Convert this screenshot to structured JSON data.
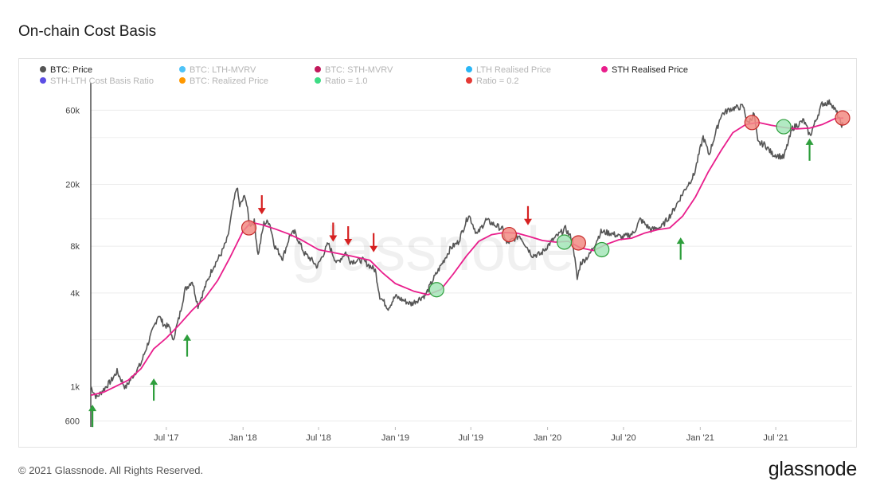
{
  "page": {
    "title": "On-chain Cost Basis",
    "footer": "© 2021 Glassnode. All Rights Reserved.",
    "logo": "glassnode",
    "watermark": "glassnode"
  },
  "chart_data": {
    "type": "line",
    "title": "On-chain Cost Basis",
    "y_scale": "log",
    "ylim": [
      550,
      80000
    ],
    "xlim": [
      "2017-01-01",
      "2021-12-31"
    ],
    "yticks": [
      {
        "label": "600",
        "value": 600
      },
      {
        "label": "1k",
        "value": 1000
      },
      {
        "label": "4k",
        "value": 4000
      },
      {
        "label": "8k",
        "value": 8000
      },
      {
        "label": "20k",
        "value": 20000
      },
      {
        "label": "60k",
        "value": 60000
      }
    ],
    "xticks": [
      {
        "label": "Jul '17",
        "date": "2017-07-01"
      },
      {
        "label": "Jan '18",
        "date": "2018-01-01"
      },
      {
        "label": "Jul '18",
        "date": "2018-07-01"
      },
      {
        "label": "Jan '19",
        "date": "2019-01-01"
      },
      {
        "label": "Jul '19",
        "date": "2019-07-01"
      },
      {
        "label": "Jan '20",
        "date": "2020-01-01"
      },
      {
        "label": "Jul '20",
        "date": "2020-07-01"
      },
      {
        "label": "Jan '21",
        "date": "2021-01-01"
      },
      {
        "label": "Jul '21",
        "date": "2021-07-01"
      }
    ],
    "grid": "horizontal",
    "legend": [
      {
        "name": "BTC: Price",
        "color": "#555555",
        "active": true
      },
      {
        "name": "BTC: LTH-MVRV",
        "color": "#4fc3f7",
        "active": false
      },
      {
        "name": "BTC: STH-MVRV",
        "color": "#c2185b",
        "active": false
      },
      {
        "name": "LTH Realised Price",
        "color": "#29b6f6",
        "active": false
      },
      {
        "name": "STH Realised Price",
        "color": "#e91e8c",
        "active": true
      },
      {
        "name": "STH-LTH Cost Basis Ratio",
        "color": "#5c4ee5",
        "active": false
      },
      {
        "name": "BTC: Realized Price",
        "color": "#ff9800",
        "active": false
      },
      {
        "name": "Ratio = 1.0",
        "color": "#3ddc84",
        "active": false
      },
      {
        "name": "Ratio = 0.2",
        "color": "#e53935",
        "active": false
      }
    ],
    "series": [
      {
        "name": "BTC: Price",
        "color": "#555555",
        "points": [
          [
            "2017-01-01",
            1000
          ],
          [
            "2017-01-15",
            850
          ],
          [
            "2017-02-01",
            960
          ],
          [
            "2017-02-20",
            1100
          ],
          [
            "2017-03-05",
            1250
          ],
          [
            "2017-03-25",
            980
          ],
          [
            "2017-04-10",
            1150
          ],
          [
            "2017-05-01",
            1400
          ],
          [
            "2017-05-15",
            1800
          ],
          [
            "2017-06-01",
            2400
          ],
          [
            "2017-06-12",
            2900
          ],
          [
            "2017-06-25",
            2500
          ],
          [
            "2017-07-10",
            2400
          ],
          [
            "2017-07-16",
            1950
          ],
          [
            "2017-08-01",
            2800
          ],
          [
            "2017-08-15",
            4200
          ],
          [
            "2017-09-01",
            4800
          ],
          [
            "2017-09-15",
            3300
          ],
          [
            "2017-10-01",
            4300
          ],
          [
            "2017-10-20",
            5800
          ],
          [
            "2017-11-10",
            7200
          ],
          [
            "2017-11-25",
            9000
          ],
          [
            "2017-12-07",
            14000
          ],
          [
            "2017-12-17",
            19500
          ],
          [
            "2017-12-24",
            14500
          ],
          [
            "2018-01-06",
            17000
          ],
          [
            "2018-01-17",
            11000
          ],
          [
            "2018-01-28",
            11500
          ],
          [
            "2018-02-06",
            7000
          ],
          [
            "2018-02-20",
            11200
          ],
          [
            "2018-03-05",
            11500
          ],
          [
            "2018-03-18",
            8000
          ],
          [
            "2018-04-06",
            6700
          ],
          [
            "2018-04-24",
            9500
          ],
          [
            "2018-05-05",
            9800
          ],
          [
            "2018-05-28",
            7200
          ],
          [
            "2018-06-15",
            6500
          ],
          [
            "2018-06-28",
            5900
          ],
          [
            "2018-07-24",
            8300
          ],
          [
            "2018-08-14",
            6200
          ],
          [
            "2018-09-04",
            7300
          ],
          [
            "2018-09-15",
            6400
          ],
          [
            "2018-10-15",
            6500
          ],
          [
            "2018-11-14",
            5600
          ],
          [
            "2018-11-25",
            3800
          ],
          [
            "2018-12-15",
            3200
          ],
          [
            "2019-01-01",
            3800
          ],
          [
            "2019-02-08",
            3400
          ],
          [
            "2019-03-15",
            3900
          ],
          [
            "2019-04-02",
            4900
          ],
          [
            "2019-05-14",
            7800
          ],
          [
            "2019-06-01",
            8500
          ],
          [
            "2019-06-26",
            12800
          ],
          [
            "2019-07-16",
            9500
          ],
          [
            "2019-08-06",
            11800
          ],
          [
            "2019-09-15",
            10300
          ],
          [
            "2019-09-25",
            8300
          ],
          [
            "2019-10-26",
            9400
          ],
          [
            "2019-11-25",
            7000
          ],
          [
            "2019-12-15",
            7100
          ],
          [
            "2020-01-14",
            8800
          ],
          [
            "2020-02-13",
            10400
          ],
          [
            "2020-03-01",
            8700
          ],
          [
            "2020-03-12",
            4900
          ],
          [
            "2020-03-20",
            6200
          ],
          [
            "2020-04-10",
            7000
          ],
          [
            "2020-05-08",
            9900
          ],
          [
            "2020-06-01",
            9700
          ],
          [
            "2020-06-28",
            9100
          ],
          [
            "2020-07-25",
            9700
          ],
          [
            "2020-08-10",
            11900
          ],
          [
            "2020-09-05",
            10200
          ],
          [
            "2020-10-01",
            10700
          ],
          [
            "2020-10-25",
            13100
          ],
          [
            "2020-11-25",
            18500
          ],
          [
            "2020-12-17",
            23000
          ],
          [
            "2021-01-08",
            40500
          ],
          [
            "2021-01-22",
            31000
          ],
          [
            "2021-02-20",
            56000
          ],
          [
            "2021-03-13",
            61000
          ],
          [
            "2021-04-14",
            63500
          ],
          [
            "2021-04-25",
            49000
          ],
          [
            "2021-05-10",
            57000
          ],
          [
            "2021-05-19",
            37000
          ],
          [
            "2021-06-05",
            36000
          ],
          [
            "2021-06-22",
            31500
          ],
          [
            "2021-07-20",
            29800
          ],
          [
            "2021-08-10",
            46000
          ],
          [
            "2021-09-06",
            51500
          ],
          [
            "2021-09-21",
            41000
          ],
          [
            "2021-10-20",
            66000
          ],
          [
            "2021-11-10",
            67500
          ],
          [
            "2021-11-25",
            57000
          ],
          [
            "2021-12-04",
            49000
          ],
          [
            "2021-12-10",
            48000
          ]
        ]
      },
      {
        "name": "STH Realised Price",
        "color": "#e91e8c",
        "points": [
          [
            "2017-01-01",
            880
          ],
          [
            "2017-02-01",
            920
          ],
          [
            "2017-03-01",
            1000
          ],
          [
            "2017-04-01",
            1100
          ],
          [
            "2017-05-01",
            1300
          ],
          [
            "2017-06-01",
            1750
          ],
          [
            "2017-07-01",
            2050
          ],
          [
            "2017-08-01",
            2500
          ],
          [
            "2017-09-01",
            3100
          ],
          [
            "2017-10-01",
            3700
          ],
          [
            "2017-11-01",
            4800
          ],
          [
            "2017-12-01",
            6800
          ],
          [
            "2018-01-01",
            10000
          ],
          [
            "2018-01-20",
            11400
          ],
          [
            "2018-02-15",
            11000
          ],
          [
            "2018-03-20",
            10300
          ],
          [
            "2018-04-20",
            9600
          ],
          [
            "2018-05-20",
            8800
          ],
          [
            "2018-07-01",
            7600
          ],
          [
            "2018-08-15",
            7200
          ],
          [
            "2018-09-20",
            6900
          ],
          [
            "2018-11-01",
            6500
          ],
          [
            "2018-12-01",
            5400
          ],
          [
            "2019-01-01",
            4600
          ],
          [
            "2019-02-15",
            4100
          ],
          [
            "2019-03-20",
            3900
          ],
          [
            "2019-04-20",
            4200
          ],
          [
            "2019-05-20",
            5300
          ],
          [
            "2019-06-20",
            6900
          ],
          [
            "2019-07-20",
            8600
          ],
          [
            "2019-08-20",
            9500
          ],
          [
            "2019-09-20",
            9800
          ],
          [
            "2019-10-20",
            9700
          ],
          [
            "2019-11-20",
            9200
          ],
          [
            "2019-12-20",
            8700
          ],
          [
            "2020-01-20",
            8500
          ],
          [
            "2020-02-20",
            8600
          ],
          [
            "2020-03-20",
            7800
          ],
          [
            "2020-04-20",
            7500
          ],
          [
            "2020-05-20",
            8200
          ],
          [
            "2020-06-20",
            8800
          ],
          [
            "2020-07-20",
            9000
          ],
          [
            "2020-08-20",
            9700
          ],
          [
            "2020-09-20",
            10200
          ],
          [
            "2020-10-20",
            10500
          ],
          [
            "2020-11-20",
            12500
          ],
          [
            "2020-12-20",
            16500
          ],
          [
            "2021-01-20",
            24000
          ],
          [
            "2021-02-20",
            33000
          ],
          [
            "2021-03-20",
            43000
          ],
          [
            "2021-04-20",
            48500
          ],
          [
            "2021-05-20",
            50000
          ],
          [
            "2021-06-20",
            48000
          ],
          [
            "2021-07-20",
            46500
          ],
          [
            "2021-08-20",
            45500
          ],
          [
            "2021-09-20",
            46000
          ],
          [
            "2021-10-20",
            48500
          ],
          [
            "2021-11-20",
            53000
          ],
          [
            "2021-12-10",
            53500
          ]
        ]
      }
    ],
    "annotations": {
      "up_arrows": [
        "2017-01-05",
        "2017-06-01",
        "2017-08-20",
        "2020-11-15",
        "2021-09-20"
      ],
      "down_arrows": [
        "2018-02-15",
        "2018-08-05",
        "2018-09-10",
        "2018-11-10",
        "2019-11-15"
      ],
      "red_circles": [
        [
          "2018-01-15",
          10500
        ],
        [
          "2019-10-01",
          9500
        ],
        [
          "2020-03-15",
          8400
        ],
        [
          "2021-05-05",
          50000
        ],
        [
          "2021-12-08",
          53500
        ]
      ],
      "green_circles": [
        [
          "2019-04-10",
          4200
        ],
        [
          "2020-02-10",
          8500
        ],
        [
          "2020-05-10",
          7600
        ],
        [
          "2021-07-20",
          47000
        ]
      ]
    }
  }
}
